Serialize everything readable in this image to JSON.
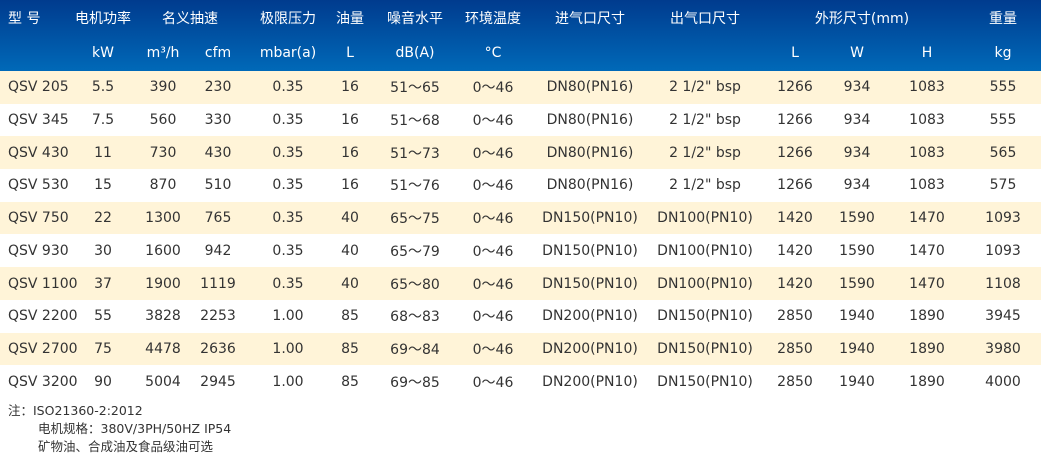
{
  "header": {
    "row1": [
      "型 号",
      "电机功率",
      "名义抽速",
      "极限压力",
      "油量",
      "噪音水平",
      "环境温度",
      "进气口尺寸",
      "出气口尺寸",
      "外形尺寸(mm)",
      "重量"
    ],
    "row2": [
      "kW",
      "m³/h",
      "cfm",
      "mbar(a)",
      "L",
      "dB(A)",
      "°C",
      "L",
      "W",
      "H",
      "kg"
    ]
  },
  "colors": {
    "header_top": "#003b8e",
    "header_bottom": "#0069b8",
    "alt_row": "#fff4d8"
  },
  "rows": [
    [
      "QSV 205",
      "5.5",
      "390",
      "230",
      "0.35",
      "16",
      "51～65",
      "0～46",
      "DN80(PN16)",
      "2 1/2\" bsp",
      "1266",
      "934",
      "1083",
      "555"
    ],
    [
      "QSV 345",
      "7.5",
      "560",
      "330",
      "0.35",
      "16",
      "51～68",
      "0～46",
      "DN80(PN16)",
      "2 1/2\" bsp",
      "1266",
      "934",
      "1083",
      "555"
    ],
    [
      "QSV 430",
      "11",
      "730",
      "430",
      "0.35",
      "16",
      "51～73",
      "0～46",
      "DN80(PN16)",
      "2 1/2\" bsp",
      "1266",
      "934",
      "1083",
      "565"
    ],
    [
      "QSV 530",
      "15",
      "870",
      "510",
      "0.35",
      "16",
      "51～76",
      "0～46",
      "DN80(PN16)",
      "2 1/2\" bsp",
      "1266",
      "934",
      "1083",
      "575"
    ],
    [
      "QSV 750",
      "22",
      "1300",
      "765",
      "0.35",
      "40",
      "65～75",
      "0～46",
      "DN150(PN10)",
      "DN100(PN10)",
      "1420",
      "1590",
      "1470",
      "1093"
    ],
    [
      "QSV 930",
      "30",
      "1600",
      "942",
      "0.35",
      "40",
      "65～79",
      "0～46",
      "DN150(PN10)",
      "DN100(PN10)",
      "1420",
      "1590",
      "1470",
      "1093"
    ],
    [
      "QSV 1100",
      "37",
      "1900",
      "1119",
      "0.35",
      "40",
      "65～80",
      "0～46",
      "DN150(PN10)",
      "DN100(PN10)",
      "1420",
      "1590",
      "1470",
      "1108"
    ],
    [
      "QSV 2200",
      "55",
      "3828",
      "2253",
      "1.00",
      "85",
      "68～83",
      "0～46",
      "DN200(PN10)",
      "DN150(PN10)",
      "2850",
      "1940",
      "1890",
      "3945"
    ],
    [
      "QSV 2700",
      "75",
      "4478",
      "2636",
      "1.00",
      "85",
      "69～84",
      "0～46",
      "DN200(PN10)",
      "DN150(PN10)",
      "2850",
      "1940",
      "1890",
      "3980"
    ],
    [
      "QSV 3200",
      "90",
      "5004",
      "2945",
      "1.00",
      "85",
      "69～85",
      "0～46",
      "DN200(PN10)",
      "DN150(PN10)",
      "2850",
      "1940",
      "1890",
      "4000"
    ]
  ],
  "notes": [
    "注：ISO21360-2:2012",
    "电机规格：380V/3PH/50HZ IP54",
    "矿物油、合成油及食品级油可选"
  ]
}
